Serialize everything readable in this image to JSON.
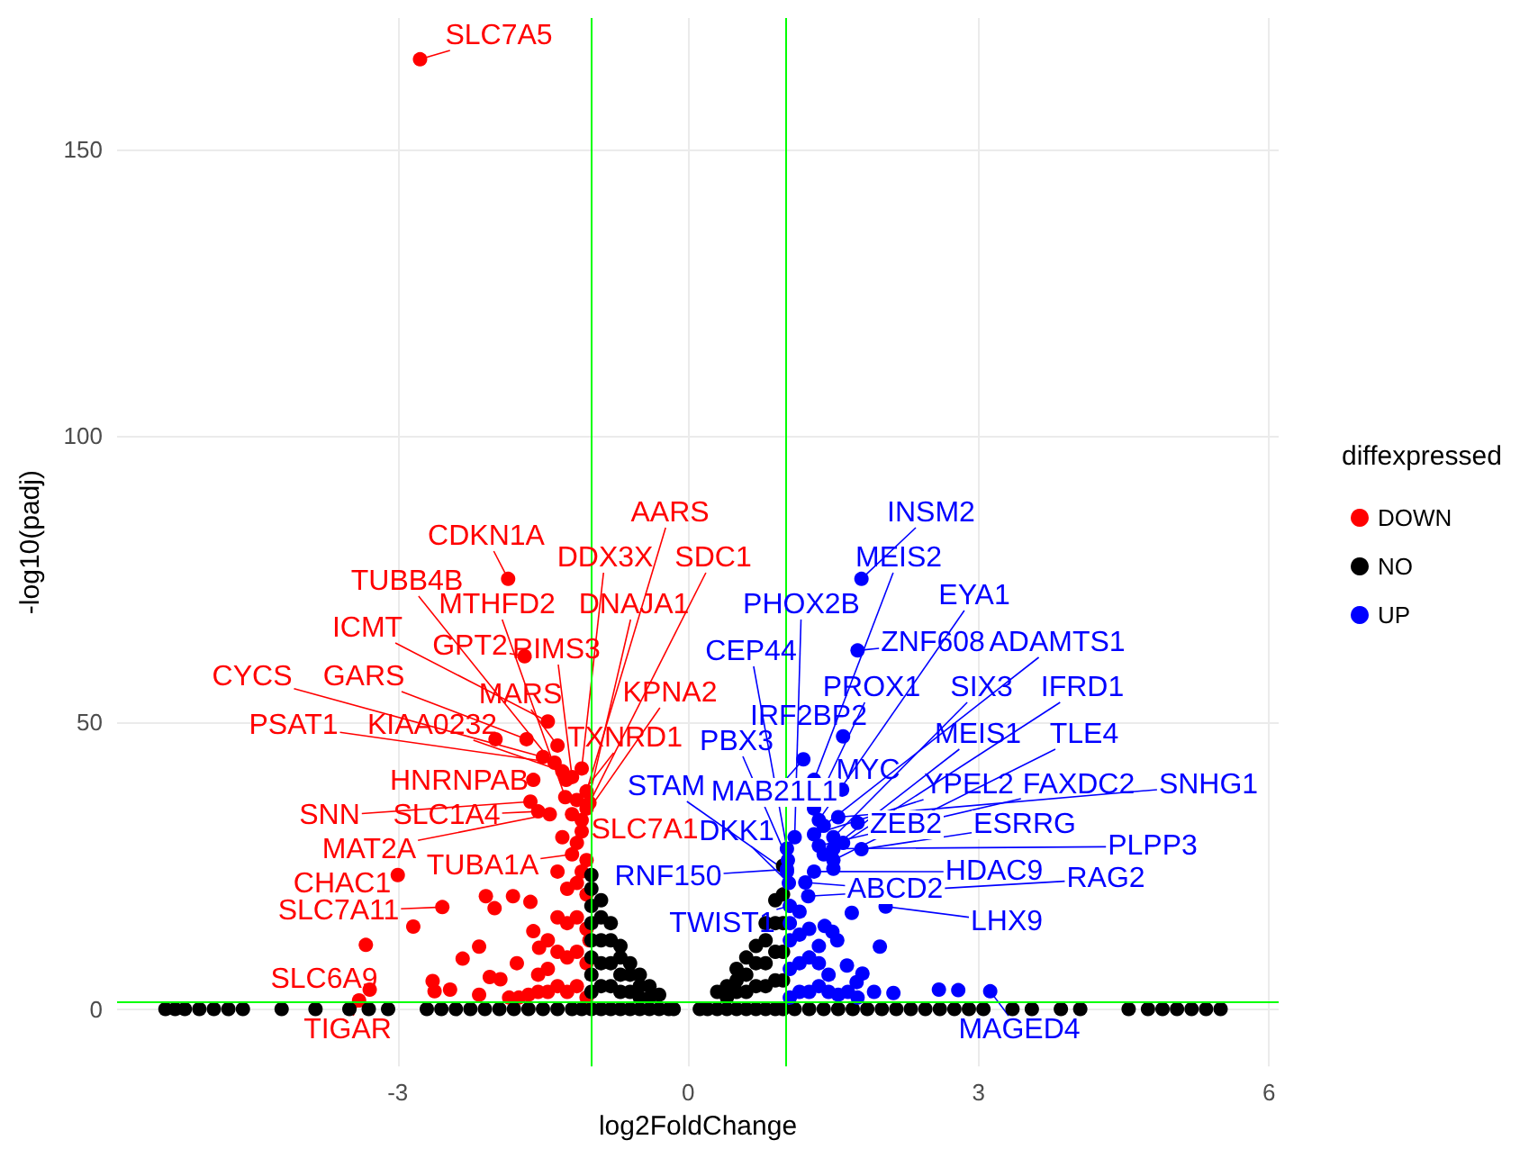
{
  "chart_data": {
    "type": "scatter",
    "xlabel": "log2FoldChange",
    "ylabel": "-log10(padj)",
    "legend_title": "diffexpressed",
    "xlim": [
      -5.9,
      6.1
    ],
    "ylim": [
      -10,
      173
    ],
    "xticks": [
      -3,
      0,
      3,
      6
    ],
    "yticks": [
      0,
      50,
      100,
      150
    ],
    "grid": true,
    "legend": "right",
    "marker": "circle",
    "ref_lines": [
      {
        "axis": "x",
        "value": -1,
        "color": "#00ff00"
      },
      {
        "axis": "x",
        "value": 1,
        "color": "#00ff00"
      },
      {
        "axis": "y",
        "value": 1.3,
        "color": "#00ff00"
      }
    ],
    "series": [
      {
        "name": "DOWN",
        "color": "#ff0000",
        "x": [
          -2.77,
          -1.05,
          -1.86,
          -1.1,
          -1.02,
          -1.26,
          -1.27,
          -1.05,
          -1.45,
          -1.69,
          -1.2,
          -1.5,
          -1.67,
          -1.35,
          -1.1,
          -1.38,
          -1.3,
          -1.15,
          -1.6,
          -1.63,
          -1.55,
          -1.1,
          -3.0,
          -1.43,
          -1.2,
          -2.54,
          -3.29,
          -3.4,
          -3.33,
          -2.84,
          -2.09,
          -2.0,
          -1.81,
          -1.63,
          -2.33,
          -2.16,
          -2.64,
          -2.46,
          -2.62,
          -2.16,
          -2.05,
          -1.94,
          -1.77,
          -1.6,
          -1.54,
          -1.99,
          -1.05,
          -1.05,
          -1.05,
          -1.05,
          -1.05,
          -1.15,
          -1.15,
          -1.15,
          -1.15,
          -1.15,
          -1.25,
          -1.25,
          -1.25,
          -1.25,
          -1.35,
          -1.35,
          -1.35,
          -1.35,
          -1.45,
          -1.45,
          -1.45,
          -1.55,
          -1.55,
          -1.65,
          -1.75,
          -1.85,
          -1.3,
          -1.2,
          -1.1,
          -1.02
        ],
        "values": [
          165.8,
          38,
          75.1,
          42,
          36,
          40,
          37,
          35,
          50.2,
          61.6,
          40.5,
          44,
          47.1,
          46,
          33,
          43,
          41.5,
          36.5,
          40,
          36.2,
          34.5,
          31,
          23.4,
          34,
          27,
          17.8,
          3.4,
          1.5,
          11.2,
          14.4,
          19.7,
          17.6,
          19.7,
          18.7,
          8.8,
          10.9,
          4.9,
          3.4,
          3.1,
          2.5,
          5.6,
          5.2,
          8,
          13.6,
          10.7,
          47.1,
          2,
          8,
          14,
          20,
          26,
          4,
          10,
          16,
          22,
          29,
          3,
          9,
          15,
          21,
          4,
          10,
          16,
          24,
          3,
          7,
          12,
          3,
          6,
          2.5,
          2,
          2,
          30,
          34,
          24,
          12
        ]
      },
      {
        "name": "NO",
        "color": "#000000",
        "x": [
          -1,
          -1,
          -1,
          -1,
          -1,
          -1,
          -1,
          -1,
          -1,
          -0.9,
          -0.9,
          -0.9,
          -0.9,
          -0.9,
          -0.9,
          -0.8,
          -0.8,
          -0.8,
          -0.8,
          -0.8,
          -0.7,
          -0.7,
          -0.7,
          -0.7,
          -0.7,
          -0.6,
          -0.6,
          -0.6,
          -0.6,
          -0.5,
          -0.5,
          -0.5,
          -0.5,
          -0.4,
          -0.4,
          -0.4,
          -0.3,
          -0.3,
          -0.2,
          -0.15,
          0.12,
          0.2,
          0.3,
          0.3,
          0.4,
          0.4,
          0.4,
          0.5,
          0.5,
          0.5,
          0.5,
          0.6,
          0.6,
          0.6,
          0.6,
          0.7,
          0.7,
          0.7,
          0.7,
          0.8,
          0.8,
          0.8,
          0.8,
          0.8,
          0.9,
          0.9,
          0.9,
          0.9,
          0.9,
          0.98,
          0.98,
          0.98,
          0.98,
          0.98,
          0.98,
          -5.4,
          -5.3,
          -5.2,
          -5.05,
          -4.9,
          -4.75,
          -4.6,
          -4.2,
          -3.85,
          -3.5,
          -3.3,
          -3.1,
          -2.7,
          -2.55,
          -2.4,
          -2.25,
          -2.1,
          -1.95,
          -1.8,
          -1.65,
          -1.5,
          -1.35,
          -1.2,
          -1.1,
          1.1,
          1.25,
          1.4,
          1.55,
          1.7,
          1.85,
          2.0,
          2.15,
          2.3,
          2.45,
          2.6,
          2.75,
          2.9,
          3.05,
          3.35,
          3.55,
          3.85,
          4.05,
          4.55,
          4.75,
          4.9,
          5.05,
          5.2,
          5.35,
          5.5
        ],
        "values": [
          0,
          3,
          6,
          9,
          12,
          15,
          18,
          21,
          23.4,
          0,
          4,
          8,
          12,
          16,
          19,
          0,
          4,
          8,
          12,
          15,
          0,
          3,
          6,
          9,
          11,
          0,
          3,
          6,
          8,
          0,
          2,
          4,
          6,
          0,
          2,
          4,
          0,
          2.5,
          0,
          0,
          0,
          0,
          0,
          3,
          0,
          2,
          4,
          0,
          3,
          5,
          7,
          0,
          3,
          6,
          9,
          0,
          4,
          8,
          11,
          0,
          4,
          8,
          12,
          15,
          0,
          5,
          10,
          15,
          19,
          0,
          5,
          10,
          15,
          20,
          25,
          0,
          0,
          0,
          0,
          0,
          0,
          0,
          0,
          0,
          0,
          0,
          0,
          0,
          0,
          0,
          0,
          0,
          0,
          0,
          0,
          0,
          0,
          0,
          0,
          0,
          0,
          0,
          0,
          0,
          0,
          0,
          0,
          0,
          0,
          0,
          0,
          0,
          0,
          0,
          0,
          0,
          0,
          0,
          0,
          0,
          0,
          0,
          0,
          0
        ]
      },
      {
        "name": "UP",
        "color": "#0000ff",
        "x": [
          1.79,
          1.3,
          1.35,
          1.1,
          1.75,
          1.4,
          1.02,
          1.3,
          1.5,
          1.6,
          1.6,
          1.03,
          1.4,
          1.5,
          1.02,
          1.19,
          1.59,
          1.3,
          1.35,
          1.55,
          1.04,
          1.75,
          1.79,
          1.5,
          1.02,
          1.21,
          1.3,
          1.24,
          1.05,
          2.04,
          3.12,
          1.69,
          1.49,
          1.54,
          1.98,
          1.64,
          1.8,
          2.12,
          2.59,
          2.79,
          1.41,
          1.74,
          1.92,
          1.5,
          1.05,
          1.05,
          1.05,
          1.05,
          1.15,
          1.15,
          1.15,
          1.15,
          1.25,
          1.25,
          1.25,
          1.35,
          1.35,
          1.35,
          1.45,
          1.45,
          1.55,
          1.65,
          1.75
        ],
        "values": [
          75.1,
          40,
          33,
          30,
          62.6,
          32,
          28,
          35,
          30,
          29,
          47.6,
          26,
          27,
          26,
          24,
          43.6,
          38.3,
          30.5,
          28.5,
          33.5,
          22,
          32.5,
          27.9,
          28,
          24.4,
          22.1,
          24,
          19.7,
          18,
          17.9,
          3.1,
          16.8,
          13.5,
          12,
          10.9,
          7.6,
          6.2,
          2.8,
          3.4,
          3.3,
          14.5,
          4.7,
          3,
          24.5,
          2,
          7,
          12,
          15,
          3,
          8,
          13,
          17,
          3,
          9,
          14,
          4,
          8,
          11,
          3,
          6,
          2.5,
          3,
          2
        ]
      }
    ],
    "annotations": [
      {
        "text": "SLC7A5",
        "x": -2.77,
        "y": 165.8
      },
      {
        "text": "AARS",
        "x": -1.05,
        "y": 38
      },
      {
        "text": "CDKN1A",
        "x": -1.86,
        "y": 75.1
      },
      {
        "text": "DDX3X",
        "x": -1.1,
        "y": 42
      },
      {
        "text": "SDC1",
        "x": -1.02,
        "y": 36
      },
      {
        "text": "TUBB4B",
        "x": -1.26,
        "y": 40
      },
      {
        "text": "MTHFD2",
        "x": -1.27,
        "y": 37
      },
      {
        "text": "DNAJA1",
        "x": -1.05,
        "y": 35
      },
      {
        "text": "ICMT",
        "x": -1.45,
        "y": 50.2
      },
      {
        "text": "GPT2",
        "x": -1.69,
        "y": 61.6
      },
      {
        "text": "RIMS3",
        "x": -1.2,
        "y": 40.5
      },
      {
        "text": "CYCS",
        "x": -1.5,
        "y": 44
      },
      {
        "text": "GARS",
        "x": -1.67,
        "y": 47.1
      },
      {
        "text": "MARS",
        "x": -1.35,
        "y": 46
      },
      {
        "text": "KPNA2",
        "x": -1.1,
        "y": 33
      },
      {
        "text": "PSAT1",
        "x": -1.38,
        "y": 43
      },
      {
        "text": "KIAA0232",
        "x": -1.3,
        "y": 41.5
      },
      {
        "text": "TXNRD1",
        "x": -1.15,
        "y": 36.5
      },
      {
        "text": "HNRNPAB",
        "x": -1.6,
        "y": 40
      },
      {
        "text": "SNN",
        "x": -1.63,
        "y": 36.2
      },
      {
        "text": "SLC1A4",
        "x": -1.55,
        "y": 34.5
      },
      {
        "text": "SLC7A1",
        "x": -1.1,
        "y": 31
      },
      {
        "text": "CHAC1",
        "x": -3.0,
        "y": 23.4
      },
      {
        "text": "MAT2A",
        "x": -1.43,
        "y": 34
      },
      {
        "text": "TUBA1A",
        "x": -1.2,
        "y": 27
      },
      {
        "text": "SLC7A11",
        "x": -2.54,
        "y": 17.8
      },
      {
        "text": "SLC6A9",
        "x": -3.29,
        "y": 3.4
      },
      {
        "text": "TIGAR",
        "x": -3.4,
        "y": 1.5
      },
      {
        "text": "INSM2",
        "x": 1.79,
        "y": 75.1
      },
      {
        "text": "MEIS2",
        "x": 1.3,
        "y": 40
      },
      {
        "text": "EYA1",
        "x": 1.35,
        "y": 33
      },
      {
        "text": "PHOX2B",
        "x": 1.1,
        "y": 30
      },
      {
        "text": "ZNF608",
        "x": 1.75,
        "y": 62.6
      },
      {
        "text": "ADAMTS1",
        "x": 1.4,
        "y": 32
      },
      {
        "text": "CEP44",
        "x": 1.02,
        "y": 28
      },
      {
        "text": "PROX1",
        "x": 1.3,
        "y": 35
      },
      {
        "text": "SIX3",
        "x": 1.5,
        "y": 30
      },
      {
        "text": "IFRD1",
        "x": 1.6,
        "y": 29
      },
      {
        "text": "IRF2BP2",
        "x": 1.6,
        "y": 47.6
      },
      {
        "text": "PBX3",
        "x": 1.03,
        "y": 26
      },
      {
        "text": "MEIS1",
        "x": 1.4,
        "y": 27
      },
      {
        "text": "TLE4",
        "x": 1.5,
        "y": 26
      },
      {
        "text": "STAM",
        "x": 1.02,
        "y": 24
      },
      {
        "text": "MAB21L1",
        "x": 1.19,
        "y": 43.6
      },
      {
        "text": "MYC",
        "x": 1.59,
        "y": 38.3
      },
      {
        "text": "YPEL2",
        "x": 1.3,
        "y": 30.5
      },
      {
        "text": "FAXDC2",
        "x": 1.35,
        "y": 28.5
      },
      {
        "text": "SNHG1",
        "x": 1.55,
        "y": 33.5
      },
      {
        "text": "DKK1",
        "x": 1.04,
        "y": 22
      },
      {
        "text": "ZEB2",
        "x": 1.75,
        "y": 32.5
      },
      {
        "text": "ESRRG",
        "x": 1.79,
        "y": 27.9
      },
      {
        "text": "PLPP3",
        "x": 1.5,
        "y": 28
      },
      {
        "text": "RNF150",
        "x": 1.02,
        "y": 24.4
      },
      {
        "text": "ABCD2",
        "x": 1.21,
        "y": 22.1
      },
      {
        "text": "HDAC9",
        "x": 1.3,
        "y": 24
      },
      {
        "text": "RAG2",
        "x": 1.24,
        "y": 19.7
      },
      {
        "text": "TWIST1",
        "x": 1.05,
        "y": 18
      },
      {
        "text": "LHX9",
        "x": 2.04,
        "y": 17.9
      },
      {
        "text": "MAGED4",
        "x": 3.12,
        "y": 3.1
      }
    ]
  }
}
